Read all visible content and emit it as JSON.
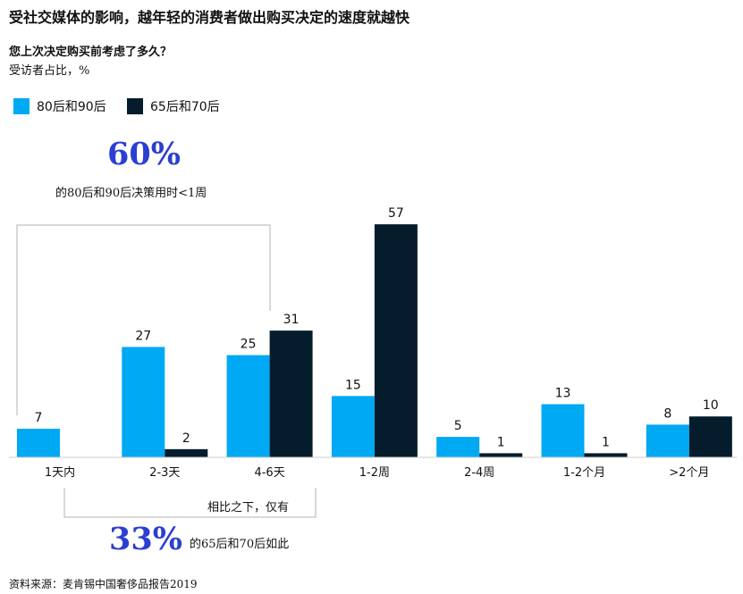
{
  "title": "受社交媒体的影响，越年轻的消费者做出购买决定的速度就越快",
  "subtitle": "您上次决定购买前考虑了多久？",
  "unit": "受访者占比，%",
  "annotations": {
    "top_big": "60%",
    "top_note": "的80后和90后决策用时<1周",
    "bottom_label": "相比之下，仅有",
    "bottom_big": "33%",
    "bottom_note": "的65后和70后如此"
  },
  "source": "资料来源：麦肯锡中国奢侈品报告2019",
  "colors": {
    "series_a": "#00a9f4",
    "series_b": "#051c2c",
    "bracket": "#b3b3b3"
  },
  "chart_data": {
    "type": "bar",
    "categories": [
      "1天内",
      "2-3天",
      "4-6天",
      "1-2周",
      "2-4周",
      "1-2个月",
      ">2个月"
    ],
    "series": [
      {
        "name": "80后和90后",
        "values": [
          7,
          27,
          25,
          15,
          5,
          13,
          8
        ]
      },
      {
        "name": "65后和70后",
        "values": [
          null,
          2,
          31,
          57,
          1,
          1,
          10
        ]
      }
    ],
    "legend_position": "top-left",
    "grid": false
  }
}
